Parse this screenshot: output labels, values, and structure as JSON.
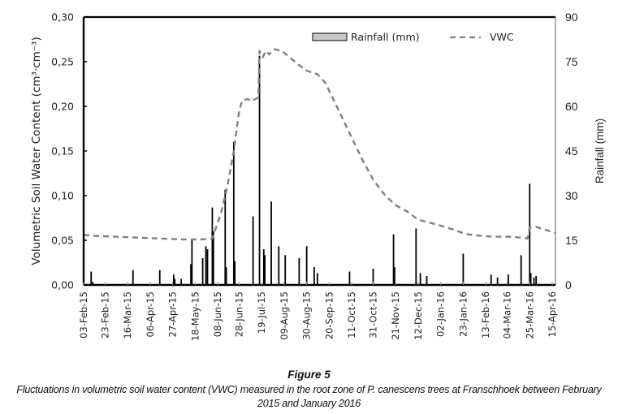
{
  "figure": {
    "title": "Figure 5",
    "caption": "Fluctuations in volumetric soil water content (VWC) measured in the root zone of P. canescens trees at Franschhoek between February 2015 and January 2016"
  },
  "chart_data": {
    "type": "bar+line",
    "title": "",
    "xlabel": "",
    "ylabel_left": "Volumetric Soil Water Content (cm³·cm⁻³)",
    "ylabel_right": "Rainfall (mm)",
    "x_start_date": "03-Feb-15",
    "x_range_days": [
      0,
      440
    ],
    "x_ticks": [
      {
        "day": 0,
        "label": "03-Feb-15"
      },
      {
        "day": 20,
        "label": "23-Feb-15"
      },
      {
        "day": 41,
        "label": "16-Mar-15"
      },
      {
        "day": 62,
        "label": "06-Apr-15"
      },
      {
        "day": 83,
        "label": "27-Apr-15"
      },
      {
        "day": 104,
        "label": "18-May-15"
      },
      {
        "day": 125,
        "label": "08-Jun-15"
      },
      {
        "day": 145,
        "label": "28-Jun-15"
      },
      {
        "day": 166,
        "label": "19-Jul-15"
      },
      {
        "day": 187,
        "label": "09-Aug-15"
      },
      {
        "day": 208,
        "label": "30-Aug-15"
      },
      {
        "day": 229,
        "label": "20-Sep-15"
      },
      {
        "day": 250,
        "label": "11-Oct-15"
      },
      {
        "day": 270,
        "label": "31-Oct-15"
      },
      {
        "day": 291,
        "label": "21-Nov-15"
      },
      {
        "day": 312,
        "label": "12-Dec-15"
      },
      {
        "day": 333,
        "label": "02-Jan-16"
      },
      {
        "day": 354,
        "label": "23-Jan-16"
      },
      {
        "day": 375,
        "label": "13-Feb-16"
      },
      {
        "day": 395,
        "label": "04-Mar-16"
      },
      {
        "day": 416,
        "label": "25-Mar-16"
      },
      {
        "day": 437,
        "label": "15-Apr-16"
      }
    ],
    "y_left": {
      "range": [
        0,
        0.3
      ],
      "ticks": [
        "0,00",
        "0,05",
        "0,10",
        "0,15",
        "0,20",
        "0,25",
        "0,30"
      ],
      "tick_values": [
        0,
        0.05,
        0.1,
        0.15,
        0.2,
        0.25,
        0.3
      ]
    },
    "y_right": {
      "range": [
        0,
        90
      ],
      "ticks": [
        "0",
        "15",
        "30",
        "45",
        "60",
        "75",
        "90"
      ],
      "tick_values": [
        0,
        15,
        30,
        45,
        60,
        75,
        90
      ]
    },
    "grid": false,
    "legend": {
      "position": "top-right",
      "entries": [
        {
          "name": "Rainfall (mm)",
          "style": "bar",
          "color": "#c8c8c8"
        },
        {
          "name": "VWC",
          "style": "dashed-line",
          "color": "#808080"
        }
      ]
    },
    "series": [
      {
        "name": "Rainfall (mm)",
        "axis": "right",
        "type": "bar",
        "color": "#000000",
        "points": [
          {
            "day": 7,
            "value": 4.5
          },
          {
            "day": 8.5,
            "value": 1
          },
          {
            "day": 46,
            "value": 5
          },
          {
            "day": 71,
            "value": 5
          },
          {
            "day": 84,
            "value": 3.5
          },
          {
            "day": 85,
            "value": 2
          },
          {
            "day": 91,
            "value": 2
          },
          {
            "day": 100,
            "value": 7
          },
          {
            "day": 101,
            "value": 15
          },
          {
            "day": 111,
            "value": 9
          },
          {
            "day": 114,
            "value": 13
          },
          {
            "day": 115.5,
            "value": 12
          },
          {
            "day": 120,
            "value": 26
          },
          {
            "day": 121,
            "value": 18
          },
          {
            "day": 132,
            "value": 32
          },
          {
            "day": 133,
            "value": 6
          },
          {
            "day": 140,
            "value": 48
          },
          {
            "day": 141,
            "value": 8
          },
          {
            "day": 158,
            "value": 23
          },
          {
            "day": 164,
            "value": 77
          },
          {
            "day": 168,
            "value": 12
          },
          {
            "day": 169,
            "value": 10
          },
          {
            "day": 175,
            "value": 28
          },
          {
            "day": 182,
            "value": 13
          },
          {
            "day": 188,
            "value": 10
          },
          {
            "day": 201,
            "value": 9
          },
          {
            "day": 208,
            "value": 13
          },
          {
            "day": 215,
            "value": 6
          },
          {
            "day": 218,
            "value": 4
          },
          {
            "day": 248,
            "value": 4.5
          },
          {
            "day": 270,
            "value": 5.5
          },
          {
            "day": 289,
            "value": 17
          },
          {
            "day": 290,
            "value": 6
          },
          {
            "day": 310,
            "value": 19
          },
          {
            "day": 314,
            "value": 4
          },
          {
            "day": 320,
            "value": 3
          },
          {
            "day": 354,
            "value": 10.5
          },
          {
            "day": 380,
            "value": 3.5
          },
          {
            "day": 386,
            "value": 2.5
          },
          {
            "day": 396,
            "value": 3.5
          },
          {
            "day": 408,
            "value": 10
          },
          {
            "day": 416,
            "value": 34
          },
          {
            "day": 417,
            "value": 4
          },
          {
            "day": 420,
            "value": 2.5
          },
          {
            "day": 422,
            "value": 3
          }
        ]
      },
      {
        "name": "VWC",
        "axis": "left",
        "type": "line",
        "style": "dashed",
        "color": "#808080",
        "points": [
          {
            "day": 0,
            "value": 0.056
          },
          {
            "day": 10,
            "value": 0.055
          },
          {
            "day": 30,
            "value": 0.054
          },
          {
            "day": 50,
            "value": 0.053
          },
          {
            "day": 70,
            "value": 0.052
          },
          {
            "day": 90,
            "value": 0.051
          },
          {
            "day": 110,
            "value": 0.051
          },
          {
            "day": 120,
            "value": 0.052
          },
          {
            "day": 124,
            "value": 0.066
          },
          {
            "day": 128,
            "value": 0.08
          },
          {
            "day": 134,
            "value": 0.11
          },
          {
            "day": 140,
            "value": 0.15
          },
          {
            "day": 145,
            "value": 0.195
          },
          {
            "day": 148,
            "value": 0.207
          },
          {
            "day": 153,
            "value": 0.208
          },
          {
            "day": 157,
            "value": 0.206
          },
          {
            "day": 163,
            "value": 0.21
          },
          {
            "day": 164,
            "value": 0.262
          },
          {
            "day": 167,
            "value": 0.255
          },
          {
            "day": 170,
            "value": 0.262
          },
          {
            "day": 173,
            "value": 0.258
          },
          {
            "day": 178,
            "value": 0.264
          },
          {
            "day": 185,
            "value": 0.262
          },
          {
            "day": 192,
            "value": 0.255
          },
          {
            "day": 200,
            "value": 0.247
          },
          {
            "day": 208,
            "value": 0.24
          },
          {
            "day": 218,
            "value": 0.236
          },
          {
            "day": 225,
            "value": 0.227
          },
          {
            "day": 232,
            "value": 0.21
          },
          {
            "day": 240,
            "value": 0.19
          },
          {
            "day": 250,
            "value": 0.165
          },
          {
            "day": 260,
            "value": 0.14
          },
          {
            "day": 270,
            "value": 0.118
          },
          {
            "day": 280,
            "value": 0.102
          },
          {
            "day": 290,
            "value": 0.09
          },
          {
            "day": 302,
            "value": 0.082
          },
          {
            "day": 312,
            "value": 0.073
          },
          {
            "day": 322,
            "value": 0.07
          },
          {
            "day": 334,
            "value": 0.066
          },
          {
            "day": 345,
            "value": 0.062
          },
          {
            "day": 356,
            "value": 0.057
          },
          {
            "day": 370,
            "value": 0.055
          },
          {
            "day": 385,
            "value": 0.054
          },
          {
            "day": 400,
            "value": 0.054
          },
          {
            "day": 414,
            "value": 0.052
          },
          {
            "day": 416,
            "value": 0.064
          },
          {
            "day": 422,
            "value": 0.065
          },
          {
            "day": 430,
            "value": 0.062
          },
          {
            "day": 440,
            "value": 0.058
          }
        ]
      }
    ]
  }
}
